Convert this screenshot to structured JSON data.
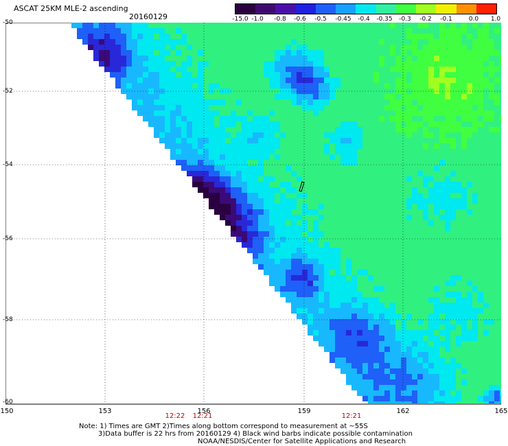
{
  "header": {
    "title": "ASCAT 25KM MLE-2 ascending",
    "date": "20160129"
  },
  "colorbar": {
    "labels": [
      "-15.0",
      "-1.0",
      "-0.8",
      "-0.6",
      "-0.5",
      "-0.45",
      "-0.4",
      "-0.35",
      "-0.3",
      "-0.2",
      "-0.1",
      "0.0",
      "1.0"
    ],
    "colors": [
      "#2a0040",
      "#3e0a70",
      "#4a0fa8",
      "#2020e0",
      "#1e60f8",
      "#18a0ff",
      "#00e8f0",
      "#30f0a0",
      "#40ff40",
      "#a0ff20",
      "#f0f000",
      "#ff9000",
      "#ff2000"
    ]
  },
  "axes": {
    "lat_labels": [
      "-50",
      "-52",
      "-54",
      "-56",
      "-58",
      "-60"
    ],
    "lon_labels": [
      "150",
      "153",
      "156",
      "159",
      "162",
      "165"
    ],
    "time_labels": [
      "12:22",
      "12:21",
      "12:21"
    ]
  },
  "notes": {
    "line1": "Note: 1) Times are GMT 2)Times along bottom correspond to measurement at ~55S",
    "line2": "3)Data buffer is 22 hrs from 20160129 4) Black wind barbs indicate possible contamination",
    "line3": "NOAA/NESDIS/Center for Satellite Applications and Research"
  }
}
